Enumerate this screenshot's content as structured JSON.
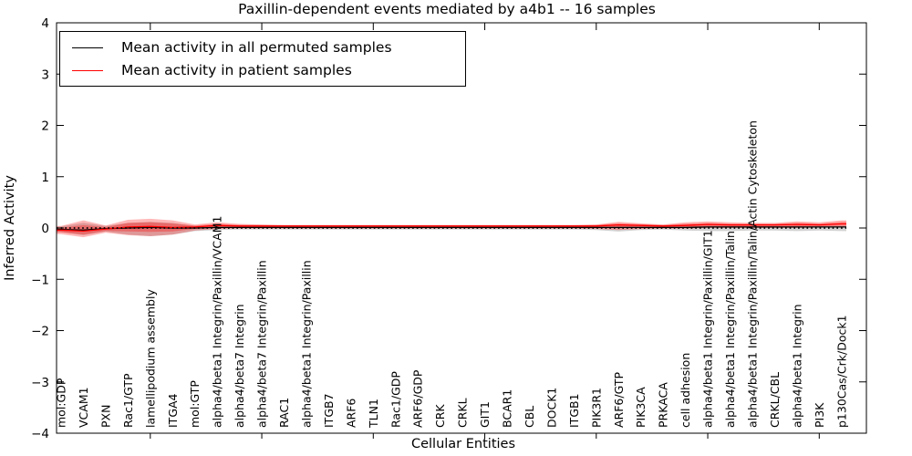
{
  "title": "Paxillin-dependent events mediated by a4b1 -- 16 samples",
  "axes": {
    "xlabel": "Cellular Entities",
    "ylabel": "Inferred Activity"
  },
  "legend": {
    "items": [
      {
        "label": "Mean activity in all permuted samples",
        "color": "#000000"
      },
      {
        "label": "Mean activity in patient samples",
        "color": "#ff0000"
      }
    ]
  },
  "colors": {
    "frame": "#000000",
    "permuted_line": "#000000",
    "patient_line": "#ff0000",
    "permuted_band": "#808080",
    "patient_band": "#ff0000",
    "zero_line": "#000000"
  },
  "chart_data": {
    "type": "line",
    "title": "Paxillin-dependent events mediated by a4b1 -- 16 samples",
    "xlabel": "Cellular Entities",
    "ylabel": "Inferred Activity",
    "ylim": [
      -4,
      4
    ],
    "ytick_labels": [
      "−4",
      "−3",
      "−2",
      "−1",
      "0",
      "1",
      "2",
      "3",
      "4"
    ],
    "ytick_values": [
      -4,
      -3,
      -2,
      -1,
      0,
      1,
      2,
      3,
      4
    ],
    "xtick_indices": [
      4,
      9,
      14,
      19,
      24,
      29,
      34
    ],
    "grid": false,
    "legend_position": "upper left",
    "categories": [
      "mol:GDP",
      "VCAM1",
      "PXN",
      "Rac1/GTP",
      "lamellipodium assembly",
      "ITGA4",
      "mol:GTP",
      "alpha4/beta1 Integrin/Paxillin/VCAM1",
      "alpha4/beta7 Integrin",
      "alpha4/beta7 Integrin/Paxillin",
      "RAC1",
      "alpha4/beta1 Integrin/Paxillin",
      "ITGB7",
      "ARF6",
      "TLN1",
      "Rac1/GDP",
      "ARF6/GDP",
      "CRK",
      "CRKL",
      "GIT1",
      "BCAR1",
      "CBL",
      "DOCK1",
      "ITGB1",
      "PIK3R1",
      "ARF6/GTP",
      "PIK3CA",
      "PRKACA",
      "cell adhesion",
      "alpha4/beta1 Integrin/Paxillin/GIT1",
      "alpha4/beta1 Integrin/Paxillin/Talin",
      "alpha4/beta1 Integrin/Paxillin/Talin/Actin Cytoskeleton",
      "CRKL/CBL",
      "alpha4/beta1 Integrin",
      "PI3K",
      "p130Cas/Crk/Dock1"
    ],
    "series": [
      {
        "name": "Mean activity in all permuted samples",
        "color": "#000000",
        "values": [
          -0.03,
          -0.04,
          -0.01,
          0.0,
          0.01,
          0.0,
          0.0,
          0.01,
          0.01,
          0.01,
          0.01,
          0.01,
          0.01,
          0.01,
          0.01,
          0.01,
          0.01,
          0.01,
          0.01,
          0.01,
          0.01,
          0.01,
          0.01,
          0.01,
          0.01,
          0.01,
          0.01,
          0.01,
          0.01,
          0.02,
          0.02,
          0.02,
          0.02,
          0.02,
          0.02,
          0.02
        ]
      },
      {
        "name": "Mean activity in patient samples",
        "color": "#ff0000",
        "values": [
          -0.04,
          -0.06,
          -0.02,
          0.02,
          0.03,
          0.01,
          0.02,
          0.05,
          0.04,
          0.04,
          0.04,
          0.04,
          0.04,
          0.04,
          0.04,
          0.04,
          0.04,
          0.04,
          0.04,
          0.04,
          0.04,
          0.04,
          0.04,
          0.04,
          0.04,
          0.06,
          0.05,
          0.04,
          0.05,
          0.07,
          0.06,
          0.06,
          0.06,
          0.07,
          0.06,
          0.08
        ]
      }
    ],
    "bands": [
      {
        "name": "permuted-envelope",
        "color": "#808080",
        "opacity": 0.35,
        "upper": [
          0.03,
          0.1,
          0.04,
          0.1,
          0.12,
          0.1,
          0.04,
          0.05,
          0.03,
          0.03,
          0.03,
          0.03,
          0.03,
          0.03,
          0.03,
          0.03,
          0.03,
          0.03,
          0.03,
          0.03,
          0.03,
          0.03,
          0.03,
          0.03,
          0.03,
          0.05,
          0.04,
          0.03,
          0.04,
          0.05,
          0.05,
          0.04,
          0.04,
          0.05,
          0.04,
          0.05
        ],
        "lower": [
          -0.08,
          -0.14,
          -0.07,
          -0.13,
          -0.16,
          -0.13,
          -0.06,
          -0.04,
          -0.03,
          -0.03,
          -0.03,
          -0.03,
          -0.03,
          -0.03,
          -0.03,
          -0.03,
          -0.03,
          -0.03,
          -0.03,
          -0.03,
          -0.03,
          -0.03,
          -0.03,
          -0.03,
          -0.04,
          -0.07,
          -0.04,
          -0.03,
          -0.05,
          -0.06,
          -0.06,
          -0.05,
          -0.05,
          -0.06,
          -0.05,
          -0.06
        ]
      },
      {
        "name": "patient-envelope",
        "color": "#ff0000",
        "opacity": 0.28,
        "upper": [
          0.04,
          0.15,
          0.05,
          0.16,
          0.18,
          0.15,
          0.07,
          0.11,
          0.08,
          0.07,
          0.06,
          0.06,
          0.06,
          0.06,
          0.06,
          0.06,
          0.06,
          0.06,
          0.06,
          0.06,
          0.06,
          0.06,
          0.06,
          0.06,
          0.07,
          0.12,
          0.09,
          0.07,
          0.11,
          0.13,
          0.11,
          0.1,
          0.1,
          0.13,
          0.11,
          0.15
        ],
        "lower": [
          -0.12,
          -0.18,
          -0.09,
          -0.14,
          -0.16,
          -0.13,
          -0.05,
          -0.02,
          -0.01,
          -0.01,
          -0.01,
          -0.01,
          -0.01,
          -0.01,
          -0.01,
          -0.01,
          -0.01,
          -0.01,
          -0.01,
          -0.01,
          -0.01,
          -0.01,
          -0.01,
          -0.01,
          -0.02,
          -0.04,
          -0.02,
          -0.01,
          -0.01,
          0.0,
          0.0,
          0.0,
          0.0,
          0.0,
          0.01,
          0.02
        ]
      }
    ],
    "zero_line": {
      "value": 0,
      "style": "dotted",
      "color": "#000000"
    }
  }
}
